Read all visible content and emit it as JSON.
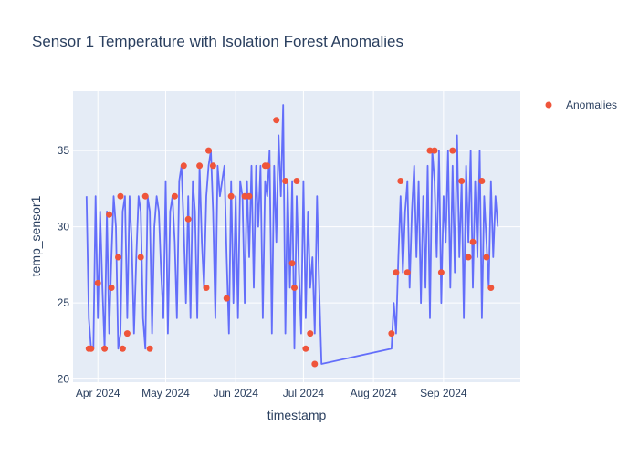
{
  "chart_data": {
    "type": "line",
    "title": "Sensor 1 Temperature with Isolation Forest Anomalies",
    "xlabel": "timestamp",
    "ylabel": "temp_sensor1",
    "xlim": [
      "2024-03-21",
      "2024-10-05"
    ],
    "ylim": [
      19.8,
      38.9
    ],
    "x_ticks": [
      {
        "date": "2024-04-01",
        "label": "Apr 2024"
      },
      {
        "date": "2024-05-01",
        "label": "May 2024"
      },
      {
        "date": "2024-06-01",
        "label": "Jun 2024"
      },
      {
        "date": "2024-07-01",
        "label": "Jul 2024"
      },
      {
        "date": "2024-08-01",
        "label": "Aug 2024"
      },
      {
        "date": "2024-09-01",
        "label": "Sep 2024"
      }
    ],
    "y_ticks": [
      20,
      25,
      30,
      35
    ],
    "grid": true,
    "legend": {
      "position": "top-right",
      "entries": [
        "Anomalies"
      ]
    },
    "colors": {
      "line": "#636efa",
      "anomaly": "#ef553b",
      "plot_bg": "#e5ecf6",
      "grid": "#ffffff"
    },
    "series": [
      {
        "name": "",
        "kind": "line",
        "x": [
          "2024-03-27",
          "2024-03-28",
          "2024-03-29",
          "2024-03-30",
          "2024-03-31",
          "2024-04-01",
          "2024-04-02",
          "2024-04-03",
          "2024-04-04",
          "2024-04-05",
          "2024-04-06",
          "2024-04-07",
          "2024-04-08",
          "2024-04-09",
          "2024-04-10",
          "2024-04-11",
          "2024-04-12",
          "2024-04-13",
          "2024-04-14",
          "2024-04-15",
          "2024-04-16",
          "2024-04-17",
          "2024-04-18",
          "2024-04-19",
          "2024-04-20",
          "2024-04-21",
          "2024-04-22",
          "2024-04-23",
          "2024-04-24",
          "2024-04-25",
          "2024-04-26",
          "2024-04-27",
          "2024-04-28",
          "2024-04-29",
          "2024-04-30",
          "2024-05-01",
          "2024-05-02",
          "2024-05-03",
          "2024-05-04",
          "2024-05-05",
          "2024-05-06",
          "2024-05-07",
          "2024-05-08",
          "2024-05-09",
          "2024-05-10",
          "2024-05-11",
          "2024-05-12",
          "2024-05-13",
          "2024-05-14",
          "2024-05-15",
          "2024-05-16",
          "2024-05-17",
          "2024-05-18",
          "2024-05-19",
          "2024-05-20",
          "2024-05-21",
          "2024-05-22",
          "2024-05-23",
          "2024-05-24",
          "2024-05-25",
          "2024-05-26",
          "2024-05-27",
          "2024-05-28",
          "2024-05-29",
          "2024-05-30",
          "2024-05-31",
          "2024-06-01",
          "2024-06-02",
          "2024-06-03",
          "2024-06-04",
          "2024-06-05",
          "2024-06-06",
          "2024-06-07",
          "2024-06-08",
          "2024-06-09",
          "2024-06-10",
          "2024-06-11",
          "2024-06-12",
          "2024-06-13",
          "2024-06-14",
          "2024-06-15",
          "2024-06-16",
          "2024-06-17",
          "2024-06-18",
          "2024-06-19",
          "2024-06-20",
          "2024-06-21",
          "2024-06-22",
          "2024-06-23",
          "2024-06-24",
          "2024-06-25",
          "2024-06-26",
          "2024-06-27",
          "2024-06-28",
          "2024-06-29",
          "2024-06-30",
          "2024-07-01",
          "2024-07-02",
          "2024-07-03",
          "2024-07-04",
          "2024-07-05",
          "2024-07-06",
          "2024-07-07",
          "2024-07-08",
          "2024-07-09",
          "2024-08-09",
          "2024-08-10",
          "2024-08-11",
          "2024-08-12",
          "2024-08-13",
          "2024-08-14",
          "2024-08-15",
          "2024-08-16",
          "2024-08-17",
          "2024-08-18",
          "2024-08-19",
          "2024-08-20",
          "2024-08-21",
          "2024-08-22",
          "2024-08-23",
          "2024-08-24",
          "2024-08-25",
          "2024-08-26",
          "2024-08-27",
          "2024-08-28",
          "2024-08-29",
          "2024-08-30",
          "2024-08-31",
          "2024-09-01",
          "2024-09-02",
          "2024-09-03",
          "2024-09-04",
          "2024-09-05",
          "2024-09-06",
          "2024-09-07",
          "2024-09-08",
          "2024-09-09",
          "2024-09-10",
          "2024-09-11",
          "2024-09-12",
          "2024-09-13",
          "2024-09-14",
          "2024-09-15",
          "2024-09-16",
          "2024-09-17",
          "2024-09-18",
          "2024-09-19",
          "2024-09-20",
          "2024-09-21",
          "2024-09-22",
          "2024-09-23",
          "2024-09-24",
          "2024-09-25"
        ],
        "y": [
          32,
          24,
          22,
          22,
          32,
          24,
          31,
          26,
          22,
          31,
          23,
          28,
          32,
          30,
          22,
          23,
          31,
          32,
          24,
          32,
          29,
          23,
          28,
          32,
          31,
          24,
          22,
          32,
          31,
          23,
          30,
          32,
          31,
          27,
          24,
          33,
          23,
          31,
          32,
          29,
          24,
          33,
          34,
          30,
          25,
          32,
          24,
          33,
          31,
          24,
          34,
          29,
          26,
          32,
          34,
          35,
          31,
          24,
          34,
          32,
          33,
          34,
          28,
          23,
          33,
          25,
          32,
          24,
          33,
          32,
          25,
          33,
          28,
          34,
          26,
          34,
          30,
          34,
          24,
          33,
          32,
          35,
          23,
          34,
          29,
          36,
          32,
          38,
          23,
          33,
          26,
          33,
          22,
          32,
          27,
          23,
          33,
          24,
          31,
          26,
          28,
          23,
          32,
          26,
          21,
          22,
          25,
          23,
          28,
          32,
          27,
          31,
          33,
          26,
          31,
          34,
          28,
          33,
          25,
          32,
          26,
          34,
          24,
          35,
          33,
          28,
          35,
          25,
          32,
          29,
          35,
          26,
          34,
          27,
          36,
          28,
          33,
          24,
          34,
          29,
          35,
          26,
          33,
          28,
          35,
          24,
          32,
          29,
          26,
          33,
          28,
          32,
          30
        ],
        "label": ""
      },
      {
        "name": "Anomalies",
        "kind": "markers",
        "x": [
          "2024-03-28",
          "2024-03-29",
          "2024-04-01",
          "2024-04-04",
          "2024-04-06",
          "2024-04-07",
          "2024-04-10",
          "2024-04-11",
          "2024-04-12",
          "2024-04-14",
          "2024-04-20",
          "2024-04-22",
          "2024-04-24",
          "2024-05-05",
          "2024-05-09",
          "2024-05-11",
          "2024-05-16",
          "2024-05-19",
          "2024-05-20",
          "2024-05-22",
          "2024-05-28",
          "2024-05-30",
          "2024-06-05",
          "2024-06-07",
          "2024-06-14",
          "2024-06-15",
          "2024-06-19",
          "2024-06-23",
          "2024-06-26",
          "2024-06-27",
          "2024-06-28",
          "2024-07-02",
          "2024-07-04",
          "2024-07-06",
          "2024-08-09",
          "2024-08-11",
          "2024-08-13",
          "2024-08-16",
          "2024-08-26",
          "2024-08-28",
          "2024-08-31",
          "2024-09-05",
          "2024-09-09",
          "2024-09-12",
          "2024-09-14",
          "2024-09-18",
          "2024-09-20",
          "2024-09-22"
        ],
        "y": [
          22,
          22,
          26.3,
          22,
          30.8,
          26,
          28,
          32,
          22,
          23,
          28,
          32,
          22,
          32,
          34,
          30.5,
          34,
          26,
          35,
          34,
          25.3,
          32,
          32,
          32,
          34,
          34,
          37,
          33,
          27.6,
          26,
          33,
          22,
          23,
          21,
          23,
          27,
          33,
          27,
          35,
          35,
          27,
          35,
          33,
          28,
          29,
          33,
          28,
          26
        ]
      }
    ]
  }
}
